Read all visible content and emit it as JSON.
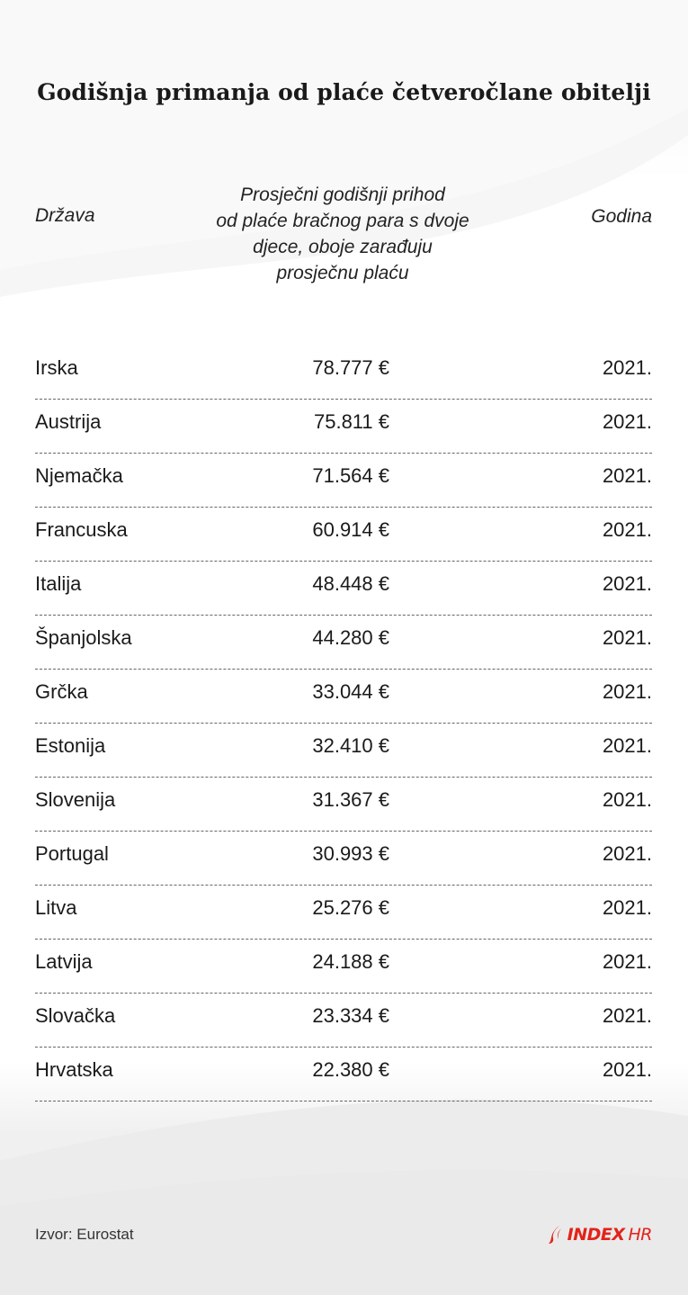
{
  "title": "Godišnja primanja od plaće četveročlane obitelji",
  "chart_data": {
    "type": "table",
    "columns": [
      "Država",
      "Prosječni godišnji prihod od plaće bračnog para s dvoje djece, oboje zarađuju prosječnu plaću",
      "Godina"
    ],
    "header_income_lines": [
      "Prosječni godišnji prihod",
      "od plaće bračnog para s dvoje",
      "djece, oboje zarađuju",
      "prosječnu plaću"
    ],
    "rows": [
      {
        "country": "Irska",
        "value": "78.777 €",
        "year": "2021."
      },
      {
        "country": "Austrija",
        "value": "75.811 €",
        "year": "2021."
      },
      {
        "country": "Njemačka",
        "value": "71.564 €",
        "year": "2021."
      },
      {
        "country": "Francuska",
        "value": "60.914 €",
        "year": "2021."
      },
      {
        "country": "Italija",
        "value": "48.448 €",
        "year": "2021."
      },
      {
        "country": "Španjolska",
        "value": "44.280 €",
        "year": "2021."
      },
      {
        "country": "Grčka",
        "value": "33.044 €",
        "year": "2021."
      },
      {
        "country": "Estonija",
        "value": "32.410 €",
        "year": "2021."
      },
      {
        "country": "Slovenija",
        "value": "31.367 €",
        "year": "2021."
      },
      {
        "country": "Portugal",
        "value": "30.993 €",
        "year": "2021."
      },
      {
        "country": "Litva",
        "value": "25.276 €",
        "year": "2021."
      },
      {
        "country": "Latvija",
        "value": "24.188 €",
        "year": "2021."
      },
      {
        "country": "Slovačka",
        "value": "23.334 €",
        "year": "2021."
      },
      {
        "country": "Hrvatska",
        "value": "22.380 €",
        "year": "2021."
      }
    ]
  },
  "source": "Izvor: Eurostat",
  "logo": {
    "main": "INDEX",
    "suffix": "HR",
    "color": "#e2231a",
    "icon": "index-hr-logo-icon"
  }
}
